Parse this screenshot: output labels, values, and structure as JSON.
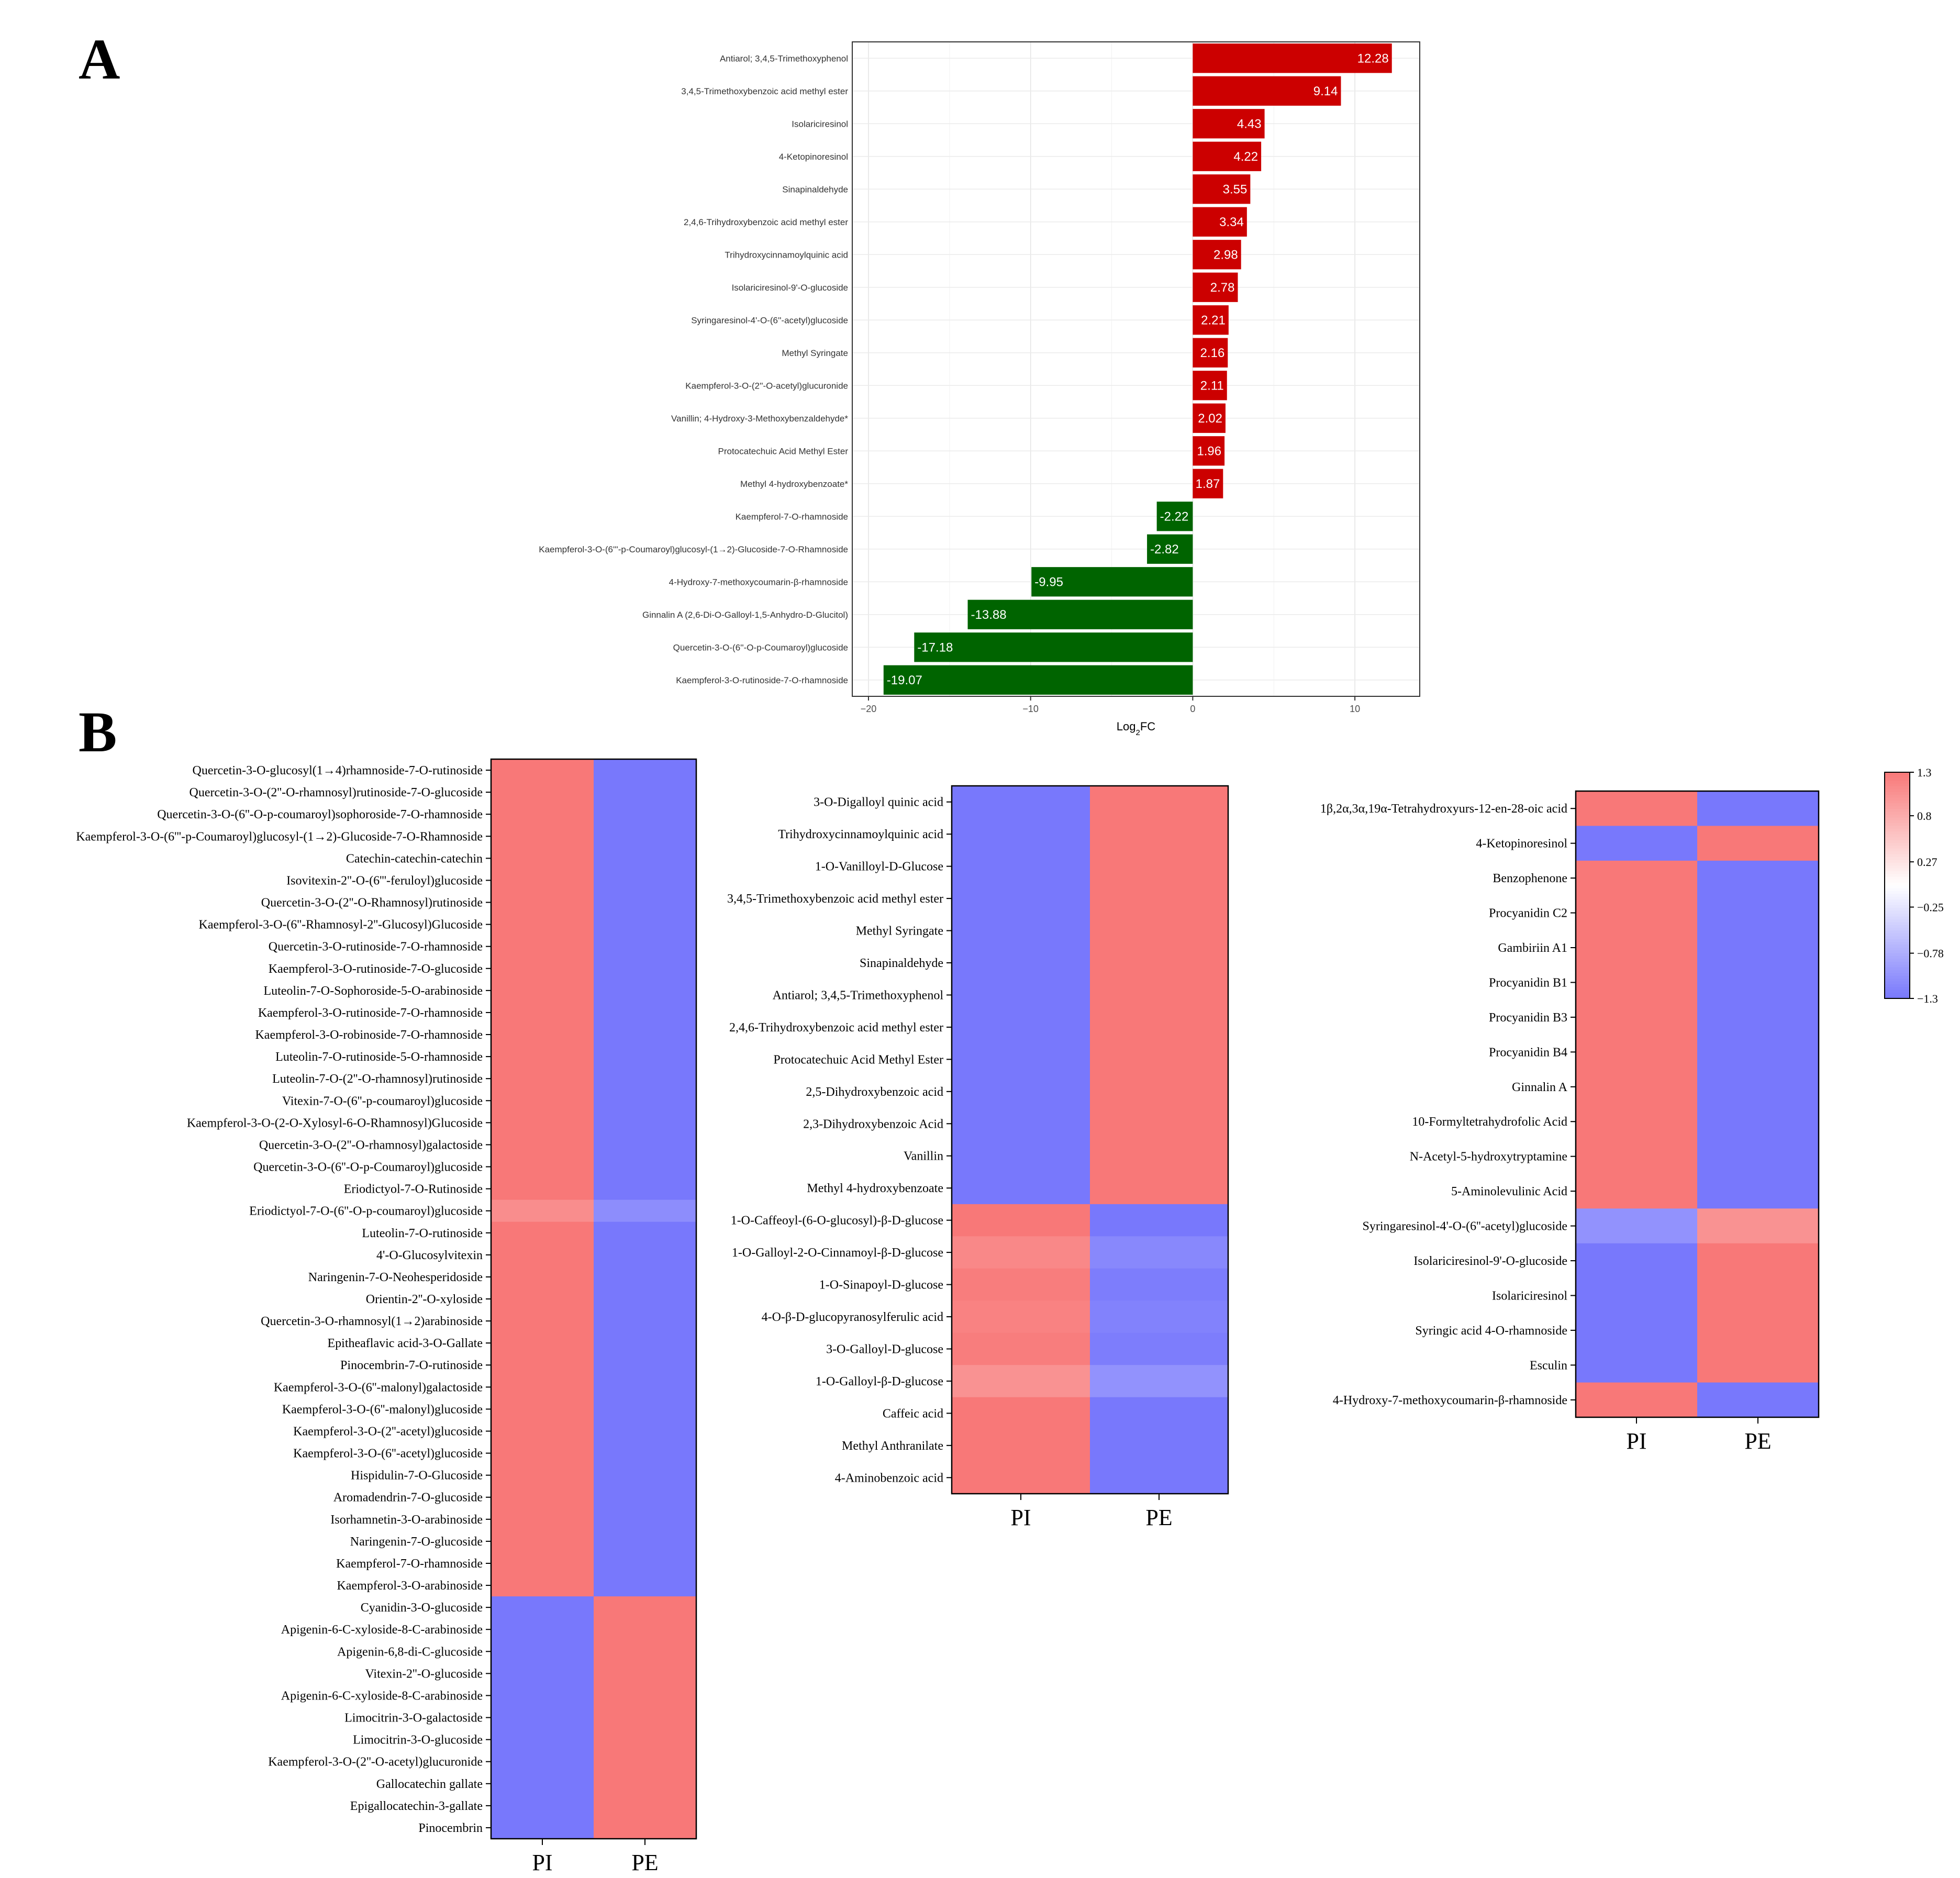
{
  "panel_labels": {
    "a": "A",
    "b": "B"
  },
  "colors": {
    "positive": "#cc0000",
    "negative": "#006400",
    "heat_high": "#f87878",
    "heat_low": "#7878fc"
  },
  "chart_data": [
    {
      "type": "bar",
      "orientation": "horizontal",
      "panel": "A",
      "title": "",
      "xlabel": "Log2FC",
      "xlim": [
        -21,
        14
      ],
      "xticks": [
        -20,
        -10,
        0,
        10
      ],
      "xtick_labels": [
        "−20",
        "−10",
        "0",
        "10"
      ],
      "grid": true,
      "categories": [
        "Antiarol; 3,4,5-Trimethoxyphenol",
        "3,4,5-Trimethoxybenzoic acid methyl ester",
        "Isolariciresinol",
        "4-Ketopinoresinol",
        "Sinapinaldehyde",
        "2,4,6-Trihydroxybenzoic acid methyl ester",
        "Trihydroxycinnamoylquinic acid",
        "Isolariciresinol-9'-O-glucoside",
        "Syringaresinol-4'-O-(6''-acetyl)glucoside",
        "Methyl Syringate",
        "Kaempferol-3-O-(2''-O-acetyl)glucuronide",
        "Vanillin; 4-Hydroxy-3-Methoxybenzaldehyde*",
        "Protocatechuic Acid Methyl Ester",
        "Methyl 4-hydroxybenzoate*",
        "Kaempferol-7-O-rhamnoside",
        "Kaempferol-3-O-(6'''-p-Coumaroyl)glucosyl-(1→2)-Glucoside-7-O-Rhamnoside",
        "4-Hydroxy-7-methoxycoumarin-β-rhamnoside",
        "Ginnalin A (2,6-Di-O-Galloyl-1,5-Anhydro-D-Glucitol)",
        "Quercetin-3-O-(6''-O-p-Coumaroyl)glucoside",
        "Kaempferol-3-O-rutinoside-7-O-rhamnoside"
      ],
      "values": [
        12.28,
        9.14,
        4.43,
        4.22,
        3.55,
        3.34,
        2.98,
        2.78,
        2.21,
        2.16,
        2.11,
        2.02,
        1.96,
        1.87,
        -2.22,
        -2.82,
        -9.95,
        -13.88,
        -17.18,
        -19.07
      ],
      "value_labels": [
        "12.28",
        "9.14",
        "4.43",
        "4.22",
        "3.55",
        "3.34",
        "2.98",
        "2.78",
        "2.21",
        "2.16",
        "2.11",
        "2.02",
        "1.96",
        "1.87",
        "-2.22",
        "-2.82",
        "-9.95",
        "-13.88",
        "-17.18",
        "-19.07"
      ]
    },
    {
      "type": "heatmap",
      "panel": "B-left",
      "columns": [
        "PI",
        "PE"
      ],
      "rows": [
        "Quercetin-3-O-glucosyl(1→4)rhamnoside-7-O-rutinoside",
        "Quercetin-3-O-(2''-O-rhamnosyl)rutinoside-7-O-glucoside",
        "Quercetin-3-O-(6''-O-p-coumaroyl)sophoroside-7-O-rhamnoside",
        "Kaempferol-3-O-(6'''-p-Coumaroyl)glucosyl-(1→2)-Glucoside-7-O-Rhamnoside",
        "Catechin-catechin-catechin",
        "Isovitexin-2''-O-(6'''-feruloyl)glucoside",
        "Quercetin-3-O-(2''-O-Rhamnosyl)rutinoside",
        "Kaempferol-3-O-(6''-Rhamnosyl-2''-Glucosyl)Glucoside",
        "Quercetin-3-O-rutinoside-7-O-rhamnoside",
        "Kaempferol-3-O-rutinoside-7-O-glucoside",
        "Luteolin-7-O-Sophoroside-5-O-arabinoside",
        "Kaempferol-3-O-rutinoside-7-O-rhamnoside",
        "Kaempferol-3-O-robinoside-7-O-rhamnoside",
        "Luteolin-7-O-rutinoside-5-O-rhamnoside",
        "Luteolin-7-O-(2''-O-rhamnosyl)rutinoside",
        "Vitexin-7-O-(6''-p-coumaroyl)glucoside",
        "Kaempferol-3-O-(2-O-Xylosyl-6-O-Rhamnosyl)Glucoside",
        "Quercetin-3-O-(2''-O-rhamnosyl)galactoside",
        "Quercetin-3-O-(6''-O-p-Coumaroyl)glucoside",
        "Eriodictyol-7-O-Rutinoside",
        "Eriodictyol-7-O-(6''-O-p-coumaroyl)glucoside",
        "Luteolin-7-O-rutinoside",
        "4'-O-Glucosylvitexin",
        "Naringenin-7-O-Neohesperidoside",
        "Orientin-2''-O-xyloside",
        "Quercetin-3-O-rhamnosyl(1→2)arabinoside",
        "Epitheaflavic acid-3-O-Gallate",
        "Pinocembrin-7-O-rutinoside",
        "Kaempferol-3-O-(6''-malonyl)galactoside",
        "Kaempferol-3-O-(6''-malonyl)glucoside",
        "Kaempferol-3-O-(2''-acetyl)glucoside",
        "Kaempferol-3-O-(6''-acetyl)glucoside",
        "Hispidulin-7-O-Glucoside",
        "Aromadendrin-7-O-glucoside",
        "Isorhamnetin-3-O-arabinoside",
        "Naringenin-7-O-glucoside",
        "Kaempferol-7-O-rhamnoside",
        "Kaempferol-3-O-arabinoside",
        "Cyanidin-3-O-glucoside",
        "Apigenin-6-C-xyloside-8-C-arabinoside",
        "Apigenin-6,8-di-C-glucoside",
        "Vitexin-2''-O-glucoside",
        "Apigenin-6-C-xyloside-8-C-arabinoside",
        "Limocitrin-3-O-galactoside",
        "Limocitrin-3-O-glucoside",
        "Kaempferol-3-O-(2''-O-acetyl)glucuronide",
        "Gallocatechin gallate",
        "Epigallocatechin-3-gallate",
        "Pinocembrin"
      ],
      "values": [
        [
          1.3,
          -1.3
        ],
        [
          1.3,
          -1.3
        ],
        [
          1.3,
          -1.3
        ],
        [
          1.3,
          -1.3
        ],
        [
          1.3,
          -1.3
        ],
        [
          1.3,
          -1.3
        ],
        [
          1.3,
          -1.3
        ],
        [
          1.3,
          -1.3
        ],
        [
          1.3,
          -1.3
        ],
        [
          1.3,
          -1.3
        ],
        [
          1.3,
          -1.3
        ],
        [
          1.3,
          -1.3
        ],
        [
          1.3,
          -1.3
        ],
        [
          1.3,
          -1.3
        ],
        [
          1.3,
          -1.3
        ],
        [
          1.3,
          -1.3
        ],
        [
          1.3,
          -1.3
        ],
        [
          1.3,
          -1.3
        ],
        [
          1.3,
          -1.3
        ],
        [
          1.3,
          -1.3
        ],
        [
          1.1,
          -1.1
        ],
        [
          1.3,
          -1.3
        ],
        [
          1.3,
          -1.3
        ],
        [
          1.3,
          -1.3
        ],
        [
          1.3,
          -1.3
        ],
        [
          1.3,
          -1.3
        ],
        [
          1.3,
          -1.3
        ],
        [
          1.3,
          -1.3
        ],
        [
          1.3,
          -1.3
        ],
        [
          1.3,
          -1.3
        ],
        [
          1.3,
          -1.3
        ],
        [
          1.3,
          -1.3
        ],
        [
          1.3,
          -1.3
        ],
        [
          1.3,
          -1.3
        ],
        [
          1.3,
          -1.3
        ],
        [
          1.3,
          -1.3
        ],
        [
          1.3,
          -1.3
        ],
        [
          1.3,
          -1.3
        ],
        [
          -1.3,
          1.3
        ],
        [
          -1.3,
          1.3
        ],
        [
          -1.3,
          1.3
        ],
        [
          -1.3,
          1.3
        ],
        [
          -1.3,
          1.3
        ],
        [
          -1.3,
          1.3
        ],
        [
          -1.3,
          1.3
        ],
        [
          -1.3,
          1.3
        ],
        [
          -1.3,
          1.3
        ],
        [
          -1.3,
          1.3
        ],
        [
          -1.3,
          1.3
        ]
      ]
    },
    {
      "type": "heatmap",
      "panel": "B-middle",
      "columns": [
        "PI",
        "PE"
      ],
      "rows": [
        "3-O-Digalloyl quinic acid",
        "Trihydroxycinnamoylquinic acid",
        "1-O-Vanilloyl-D-Glucose",
        "3,4,5-Trimethoxybenzoic acid methyl ester",
        "Methyl Syringate",
        "Sinapinaldehyde",
        "Antiarol; 3,4,5-Trimethoxyphenol",
        "2,4,6-Trihydroxybenzoic acid methyl ester",
        "Protocatechuic Acid Methyl Ester",
        "2,5-Dihydroxybenzoic acid",
        "2,3-Dihydroxybenzoic Acid",
        "Vanillin",
        "Methyl 4-hydroxybenzoate",
        "1-O-Caffeoyl-(6-O-glucosyl)-β-D-glucose",
        "1-O-Galloyl-2-O-Cinnamoyl-β-D-glucose",
        "1-O-Sinapoyl-D-glucose",
        "4-O-β-D-glucopyranosylferulic acid",
        "3-O-Galloyl-D-glucose",
        "1-O-Galloyl-β-D-glucose",
        "Caffeic acid",
        "Methyl Anthranilate",
        "4-Aminobenzoic acid"
      ],
      "values": [
        [
          -1.3,
          1.3
        ],
        [
          -1.3,
          1.3
        ],
        [
          -1.3,
          1.3
        ],
        [
          -1.3,
          1.3
        ],
        [
          -1.3,
          1.3
        ],
        [
          -1.3,
          1.3
        ],
        [
          -1.3,
          1.3
        ],
        [
          -1.3,
          1.3
        ],
        [
          -1.3,
          1.3
        ],
        [
          -1.3,
          1.3
        ],
        [
          -1.3,
          1.3
        ],
        [
          -1.3,
          1.3
        ],
        [
          -1.3,
          1.3
        ],
        [
          1.3,
          -1.3
        ],
        [
          1.15,
          -1.15
        ],
        [
          1.25,
          -1.25
        ],
        [
          1.2,
          -1.2
        ],
        [
          1.25,
          -1.25
        ],
        [
          1.05,
          -1.05
        ],
        [
          1.3,
          -1.3
        ],
        [
          1.3,
          -1.3
        ],
        [
          1.3,
          -1.3
        ]
      ]
    },
    {
      "type": "heatmap",
      "panel": "B-right",
      "columns": [
        "PI",
        "PE"
      ],
      "rows": [
        "1β,2α,3α,19α-Tetrahydroxyurs-12-en-28-oic acid",
        "4-Ketopinoresinol",
        "Benzophenone",
        "Procyanidin C2",
        "Gambiriin A1",
        "Procyanidin B1",
        "Procyanidin B3",
        "Procyanidin B4",
        "Ginnalin A",
        "10-Formyltetrahydrofolic Acid",
        "N-Acetyl-5-hydroxytryptamine",
        "5-Aminolevulinic Acid",
        "Syringaresinol-4'-O-(6''-acetyl)glucoside",
        "Isolariciresinol-9'-O-glucoside",
        "Isolariciresinol",
        "Syringic acid 4-O-rhamnoside",
        "Esculin",
        "4-Hydroxy-7-methoxycoumarin-β-rhamnoside"
      ],
      "values": [
        [
          1.3,
          -1.3
        ],
        [
          -1.3,
          1.3
        ],
        [
          1.3,
          -1.3
        ],
        [
          1.3,
          -1.3
        ],
        [
          1.3,
          -1.3
        ],
        [
          1.3,
          -1.3
        ],
        [
          1.3,
          -1.3
        ],
        [
          1.3,
          -1.3
        ],
        [
          1.3,
          -1.3
        ],
        [
          1.3,
          -1.3
        ],
        [
          1.3,
          -1.3
        ],
        [
          1.3,
          -1.3
        ],
        [
          -1.05,
          1.05
        ],
        [
          -1.3,
          1.3
        ],
        [
          -1.3,
          1.3
        ],
        [
          -1.3,
          1.3
        ],
        [
          -1.3,
          1.3
        ],
        [
          1.3,
          -1.3
        ]
      ]
    }
  ],
  "colorbar": {
    "min": -1.3,
    "max": 1.3,
    "ticks": [
      1.3,
      0.8,
      0.27,
      -0.25,
      -0.78,
      -1.3
    ],
    "tick_labels": [
      "1.3",
      "0.8",
      "0.27",
      "−0.25",
      "−0.78",
      "−1.3"
    ]
  }
}
